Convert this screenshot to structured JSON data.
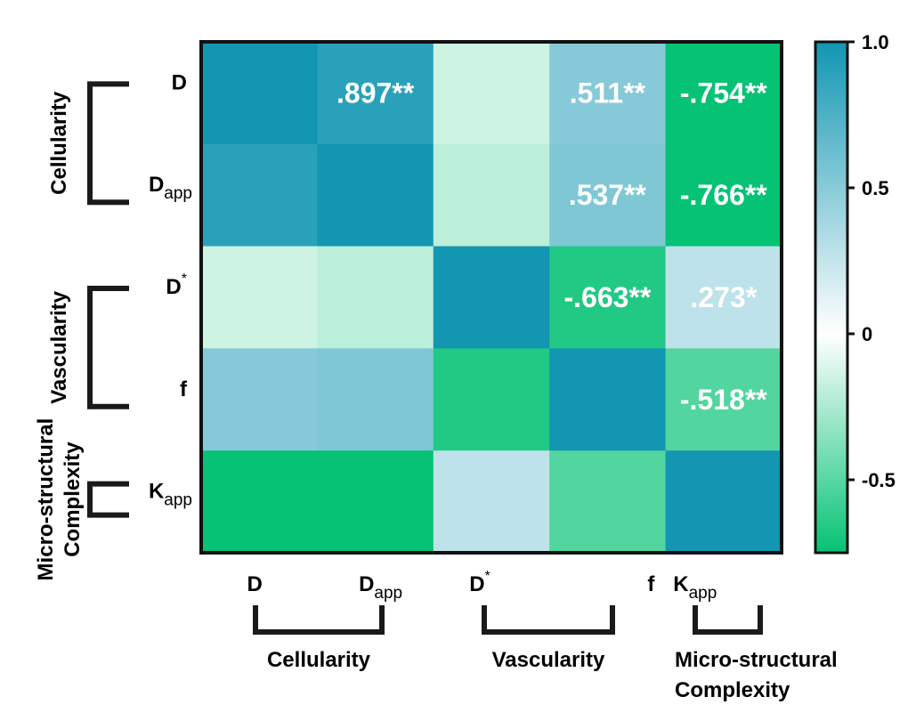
{
  "chart_data": {
    "type": "heatmap",
    "variables": [
      "D",
      "D_app",
      "D*",
      "f",
      "K_app"
    ],
    "axis_labels": [
      {
        "main": "D",
        "sub": "",
        "sup": ""
      },
      {
        "main": "D",
        "sub": "app",
        "sup": ""
      },
      {
        "main": "D",
        "sub": "",
        "sup": "*"
      },
      {
        "main": "f",
        "sub": "",
        "sup": ""
      },
      {
        "main": "K",
        "sub": "app",
        "sup": ""
      }
    ],
    "matrix": [
      [
        1.0,
        0.897,
        -0.15,
        0.511,
        -0.754
      ],
      [
        0.897,
        1.0,
        -0.2,
        0.537,
        -0.766
      ],
      [
        -0.15,
        -0.2,
        1.0,
        -0.663,
        0.273
      ],
      [
        0.511,
        0.537,
        -0.663,
        1.0,
        -0.518
      ],
      [
        -0.754,
        -0.766,
        0.273,
        -0.518,
        1.0
      ]
    ],
    "annotations": [
      {
        "row": 0,
        "col": 1,
        "text": ".897**"
      },
      {
        "row": 0,
        "col": 3,
        "text": ".511**"
      },
      {
        "row": 0,
        "col": 4,
        "text": "-.754**"
      },
      {
        "row": 1,
        "col": 3,
        "text": ".537**"
      },
      {
        "row": 1,
        "col": 4,
        "text": "-.766**"
      },
      {
        "row": 2,
        "col": 3,
        "text": "-.663**"
      },
      {
        "row": 2,
        "col": 4,
        "text": ".273*"
      },
      {
        "row": 3,
        "col": 4,
        "text": "-.518**"
      }
    ],
    "groups": [
      {
        "name": "Cellularity",
        "lines": [
          "Cellularity"
        ],
        "span": [
          0,
          1
        ]
      },
      {
        "name": "Vascularity",
        "lines": [
          "Vascularity"
        ],
        "span": [
          2,
          3
        ]
      },
      {
        "name": "Micro-structural Complexity",
        "lines": [
          "Micro-structural",
          "Complexity"
        ],
        "span": [
          4,
          4
        ]
      }
    ],
    "colorbar": {
      "range": [
        -0.75,
        1.0
      ],
      "ticks": [
        1.0,
        0.5,
        0,
        -0.5
      ],
      "tick_labels": [
        "1.0",
        "0.5",
        "0",
        "-0.5"
      ],
      "colors": {
        "high": "#1296b2",
        "mid": "#ffffff",
        "low": "#05c274"
      }
    }
  }
}
